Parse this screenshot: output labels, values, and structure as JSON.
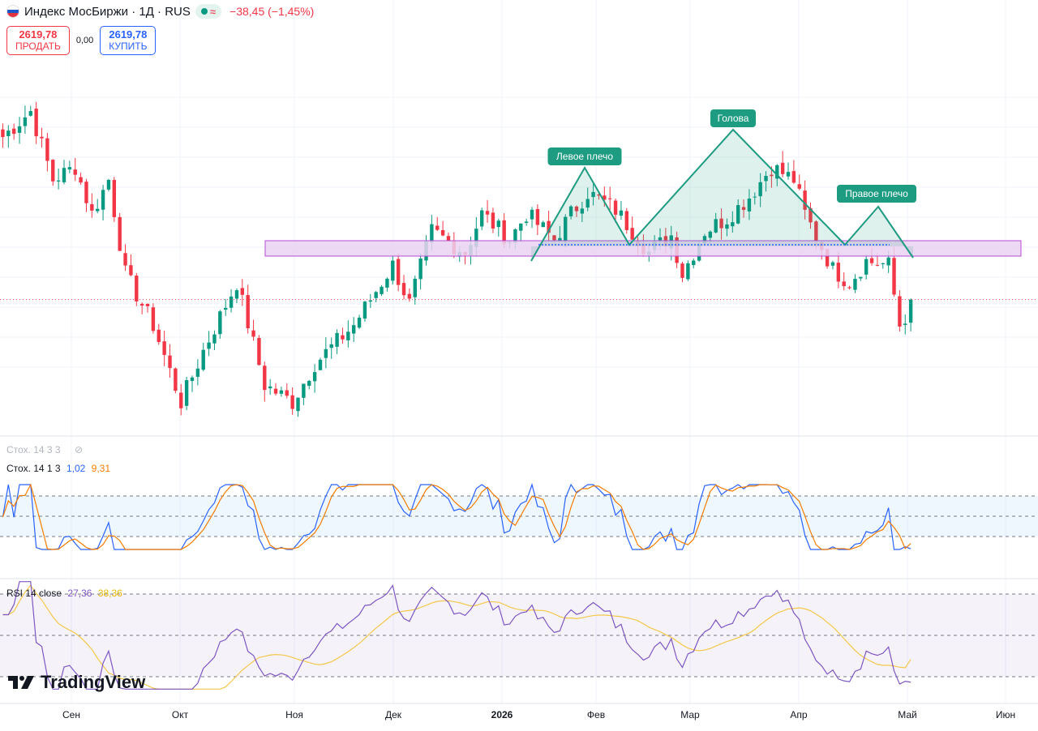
{
  "header": {
    "title": "Индекс МосБиржи · 1Д · RUS",
    "change": "−38,45 (−1,45%)",
    "sell_price": "2619,78",
    "sell_label": "ПРОДАТЬ",
    "spread": "0,00",
    "buy_price": "2619,78",
    "buy_label": "КУПИТЬ",
    "toggle_wave_icon": "≈"
  },
  "indicators": {
    "stoch_hidden_label": "Стох. 14 3 3",
    "stoch_label": "Стох. 14 1 3",
    "stoch_k": "1,02",
    "stoch_d": "9,31",
    "rsi_label": "RSI 14 close",
    "rsi_value": "27,36",
    "rsi_ma": "38,36"
  },
  "brand": {
    "logo_text": "TradingView"
  },
  "colors": {
    "up": "#089981",
    "down": "#f23645",
    "pattern": "#1e9c82",
    "zone_fill": "#ead2f1",
    "zone_stroke": "#b54bd6",
    "stoch_k": "#2962ff",
    "stoch_d": "#f57c00",
    "rsi_line": "#7e57c2",
    "rsi_ma": "#f4c84a"
  },
  "chart_data": {
    "type": "candlestick",
    "title": "Индекс МосБиржи · 1Д · RUS",
    "x_axis": [
      "Сен",
      "Окт",
      "Ноя",
      "Дек",
      "2026",
      "Фев",
      "Мар",
      "Апр",
      "Май",
      "Июн"
    ],
    "last_price": 2619.78,
    "change": -38.45,
    "change_pct": -1.45,
    "pattern": {
      "name": "head-and-shoulders",
      "labels": [
        "Левое плечо",
        "Голова",
        "Правое плечо"
      ]
    },
    "indicators": {
      "stochastic": {
        "params": "14 1 3",
        "k": 1.02,
        "d": 9.31
      },
      "rsi": {
        "params": "14 close",
        "value": 27.36,
        "ma": 38.36
      }
    }
  }
}
